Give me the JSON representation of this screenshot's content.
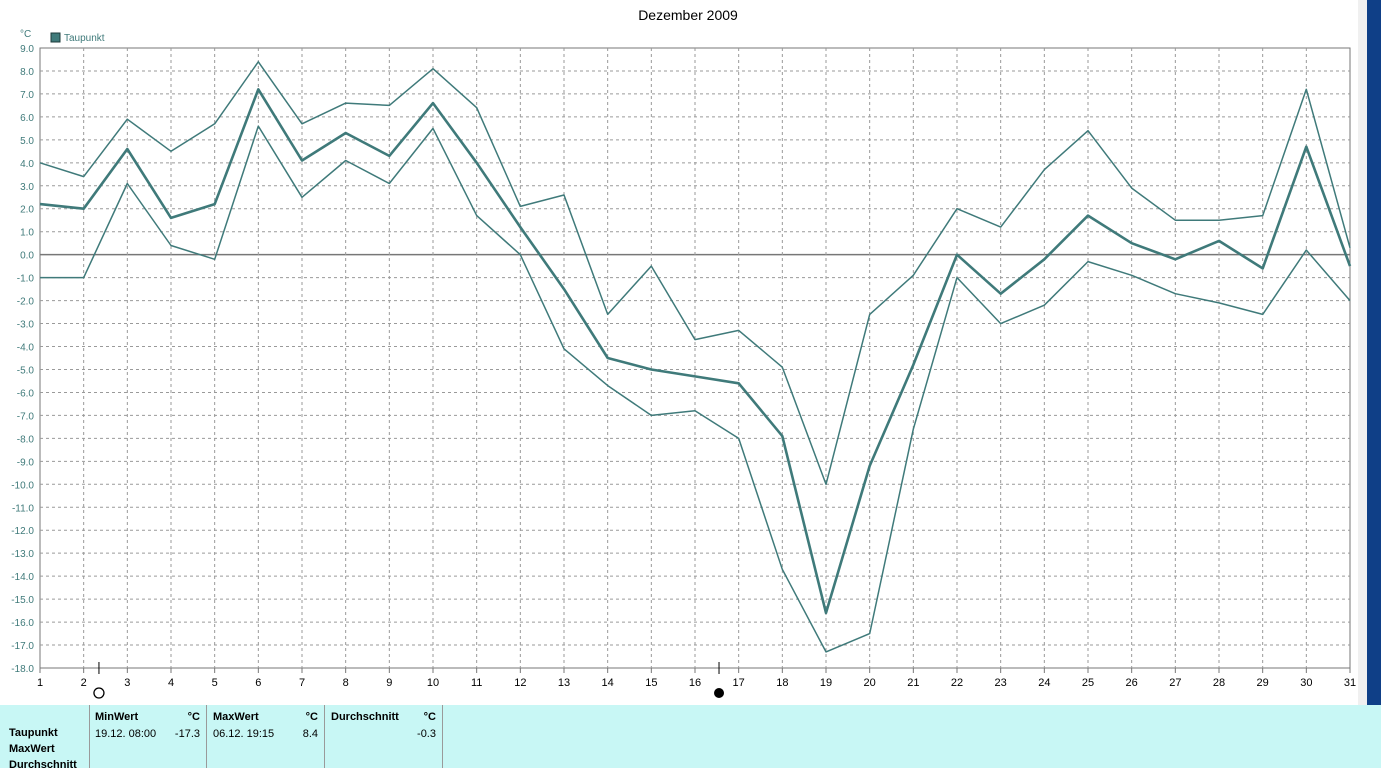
{
  "window": {
    "title": "Dezember 2009"
  },
  "chart_data": {
    "type": "line",
    "title": "Dezember 2009",
    "ylabel": "°C",
    "xlabel": "",
    "x": [
      1,
      2,
      3,
      4,
      5,
      6,
      7,
      8,
      9,
      10,
      11,
      12,
      13,
      14,
      15,
      16,
      17,
      18,
      19,
      20,
      21,
      22,
      23,
      24,
      25,
      26,
      27,
      28,
      29,
      30,
      31
    ],
    "xlim": [
      1,
      31
    ],
    "ylim": [
      -18,
      9
    ],
    "yticks": [
      "9.0",
      "8.0",
      "7.0",
      "6.0",
      "5.0",
      "4.0",
      "3.0",
      "2.0",
      "1.0",
      "0.0",
      "-1.0",
      "-2.0",
      "-3.0",
      "-4.0",
      "-5.0",
      "-6.0",
      "-7.0",
      "-8.0",
      "-9.0",
      "-10.0",
      "-11.0",
      "-12.0",
      "-13.0",
      "-14.0",
      "-15.0",
      "-16.0",
      "-17.0",
      "-18.0"
    ],
    "xticks": [
      "1",
      "2",
      "3",
      "4",
      "5",
      "6",
      "7",
      "8",
      "9",
      "10",
      "11",
      "12",
      "13",
      "14",
      "15",
      "16",
      "17",
      "18",
      "19",
      "20",
      "21",
      "22",
      "23",
      "24",
      "25",
      "26",
      "27",
      "28",
      "29",
      "30",
      "31"
    ],
    "grid": true,
    "legend": {
      "position": "top-left",
      "entries": [
        "Taupunkt"
      ]
    },
    "color": "#3f7a7a",
    "series": [
      {
        "name": "Taupunkt",
        "role": "max",
        "values": [
          4.0,
          3.4,
          5.9,
          4.5,
          5.7,
          8.4,
          5.7,
          6.6,
          6.5,
          8.1,
          6.4,
          2.1,
          2.6,
          -2.6,
          -0.5,
          -3.7,
          -3.3,
          -4.9,
          -10.0,
          -2.6,
          -0.9,
          2.0,
          1.2,
          3.7,
          5.4,
          2.9,
          1.5,
          1.5,
          1.7,
          7.2,
          0.3
        ]
      },
      {
        "name": "Taupunkt",
        "role": "mean",
        "values": [
          2.2,
          2.0,
          4.6,
          1.6,
          2.2,
          7.2,
          4.1,
          5.3,
          4.3,
          6.6,
          4.0,
          1.2,
          -1.5,
          -4.5,
          -5.0,
          -5.3,
          -5.6,
          -7.9,
          -15.6,
          -9.2,
          -4.8,
          0.0,
          -1.7,
          -0.2,
          1.7,
          0.5,
          -0.2,
          0.6,
          -0.6,
          4.7,
          -0.5
        ]
      },
      {
        "name": "Taupunkt",
        "role": "min",
        "values": [
          -1.0,
          -1.0,
          3.1,
          0.4,
          -0.2,
          5.6,
          2.5,
          4.1,
          3.1,
          5.5,
          1.7,
          0.0,
          -4.1,
          -5.7,
          -7.0,
          -6.8,
          -8.0,
          -13.7,
          -17.3,
          -16.5,
          -7.6,
          -1.0,
          -3.0,
          -2.2,
          -0.3,
          -0.9,
          -1.7,
          -2.1,
          -2.6,
          0.2,
          -2.0
        ]
      }
    ],
    "markers": [
      {
        "x": 2.35,
        "symbol": "open-circle"
      },
      {
        "x": 16.55,
        "symbol": "filled-circle"
      }
    ]
  },
  "stats": {
    "row_labels": [
      "Taupunkt",
      "MaxWert",
      "Durchschnitt"
    ],
    "columns": [
      {
        "header": "MinWert",
        "unit": "°C",
        "date": "19.12.  08:00",
        "value": "-17.3"
      },
      {
        "header": "MaxWert",
        "unit": "°C",
        "date": "06.12.  19:15",
        "value": "8.4"
      },
      {
        "header": "Durchschnitt",
        "unit": "°C",
        "date": "",
        "value": "-0.3"
      }
    ]
  }
}
